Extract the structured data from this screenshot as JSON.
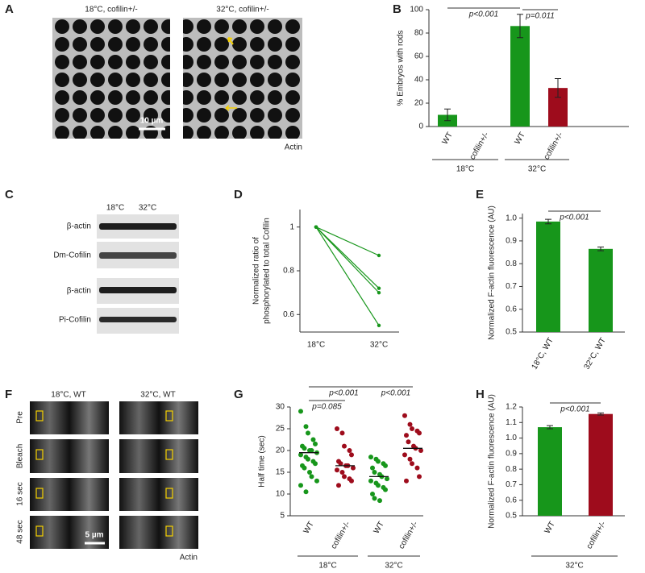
{
  "chart_data": [
    {
      "panel": "B",
      "type": "bar",
      "ylabel": "% Embryos with rods",
      "categories": [
        "WT",
        "cofilin+/-",
        "WT",
        "cofilin+/-"
      ],
      "values": [
        10,
        0,
        86,
        33
      ],
      "errors": [
        5,
        null,
        10,
        8
      ],
      "colors": [
        "#17961b",
        "#17961b",
        "#17961b",
        "#9e0c1c"
      ],
      "ylim": [
        0,
        100
      ],
      "yticks": [
        0,
        20,
        40,
        60,
        80,
        100
      ],
      "group_labels": [
        "18°C",
        "32°C"
      ],
      "annotations": [
        "p<0.001",
        "p=0.011"
      ]
    },
    {
      "panel": "D",
      "type": "line",
      "ylabel": [
        "Normalized ratio of",
        "phosphorylated to total Cofilin"
      ],
      "categories": [
        "18°C",
        "32°C"
      ],
      "series": [
        {
          "color": "#17961b",
          "values": [
            1,
            0.87
          ]
        },
        {
          "color": "#17961b",
          "values": [
            1,
            0.72
          ]
        },
        {
          "color": "#17961b",
          "values": [
            1,
            0.7
          ]
        },
        {
          "color": "#17961b",
          "values": [
            1,
            0.55
          ]
        }
      ],
      "ylim": [
        0.52,
        1.08
      ],
      "yticks": [
        0.6,
        0.8,
        1
      ]
    },
    {
      "panel": "E",
      "type": "bar",
      "ylabel": "Normalized F-actin fluorescence (AU)",
      "categories": [
        "18°C, WT",
        "32°C, WT"
      ],
      "values": [
        0.985,
        0.865
      ],
      "errors": [
        0.01,
        0.008
      ],
      "colors": [
        "#17961b",
        "#17961b"
      ],
      "ylim": [
        0.5,
        1.02
      ],
      "yticks": [
        0.5,
        0.6,
        0.7,
        0.8,
        0.9,
        {
          "value": 1,
          "label": "1.0"
        }
      ],
      "annotations": [
        "p<0.001"
      ]
    },
    {
      "panel": "G",
      "type": "dotplot",
      "ylabel": "Half time (sec)",
      "categories": [
        "WT",
        "cofilin+/-",
        "WT",
        "cofilin+/-"
      ],
      "points": [
        [
          29,
          25.5,
          24,
          22.5,
          21.5,
          21,
          20.5,
          20,
          20,
          19.5,
          19,
          18.5,
          18,
          17.5,
          17,
          16.5,
          16,
          15,
          14,
          13,
          12,
          10.5
        ],
        [
          25,
          24,
          21,
          20,
          19,
          17.5,
          17,
          16.5,
          16.5,
          16,
          15.5,
          15,
          14,
          13.5,
          13,
          12
        ],
        [
          18.5,
          18,
          17.5,
          17,
          16.5,
          16,
          15,
          14.5,
          14,
          13.5,
          13,
          12.5,
          12,
          11.5,
          11,
          10,
          9,
          8.5
        ],
        [
          28,
          26,
          25,
          24.5,
          24,
          23.5,
          22,
          21,
          20.5,
          20,
          19,
          18,
          17,
          16,
          14,
          13
        ]
      ],
      "means": [
        19.5,
        16.5,
        14,
        20.5
      ],
      "colors": [
        "#17961b",
        "#9e0c1c",
        "#17961b",
        "#9e0c1c"
      ],
      "ylim": [
        5,
        30
      ],
      "yticks": [
        5,
        10,
        15,
        20,
        25,
        30
      ],
      "group_labels": [
        "18°C",
        "32°C"
      ],
      "annotations": [
        "p<0.001",
        "p=0.085",
        "p<0.001"
      ]
    },
    {
      "panel": "H",
      "type": "bar",
      "ylabel": "Normalized F-actin fluorescence (AU)",
      "categories": [
        "WT",
        "cofilin+/-"
      ],
      "values": [
        1.07,
        1.155
      ],
      "errors": [
        0.01,
        0.007
      ],
      "colors": [
        "#17961b",
        "#9e0c1c"
      ],
      "ylim": [
        0.5,
        1.2
      ],
      "yticks": [
        0.5,
        0.6,
        0.7,
        0.8,
        0.9,
        {
          "value": 1,
          "label": "1.0"
        },
        1.1,
        1.2
      ],
      "group_labels": [
        "32°C"
      ],
      "annotations": [
        "p<0.001"
      ]
    }
  ],
  "image_panels": {
    "A": {
      "letter": "A",
      "titles": [
        "18°C, cofilin+/-",
        "32°C, cofilin+/-"
      ],
      "scale_bar": "10 µm",
      "stain": "Actin"
    },
    "C": {
      "letter": "C",
      "columns": [
        "18°C",
        "32°C"
      ],
      "rows": [
        "β-actin",
        "Dm-Cofilin",
        "β-actin",
        "Pi-Cofilin"
      ]
    },
    "F": {
      "letter": "F",
      "columns": [
        "18°C, WT",
        "32°C, WT"
      ],
      "rows": [
        "Pre",
        "Bleach",
        "16 sec",
        "48 sec"
      ],
      "scale_bar": "5 µm",
      "stain": "Actin"
    }
  }
}
